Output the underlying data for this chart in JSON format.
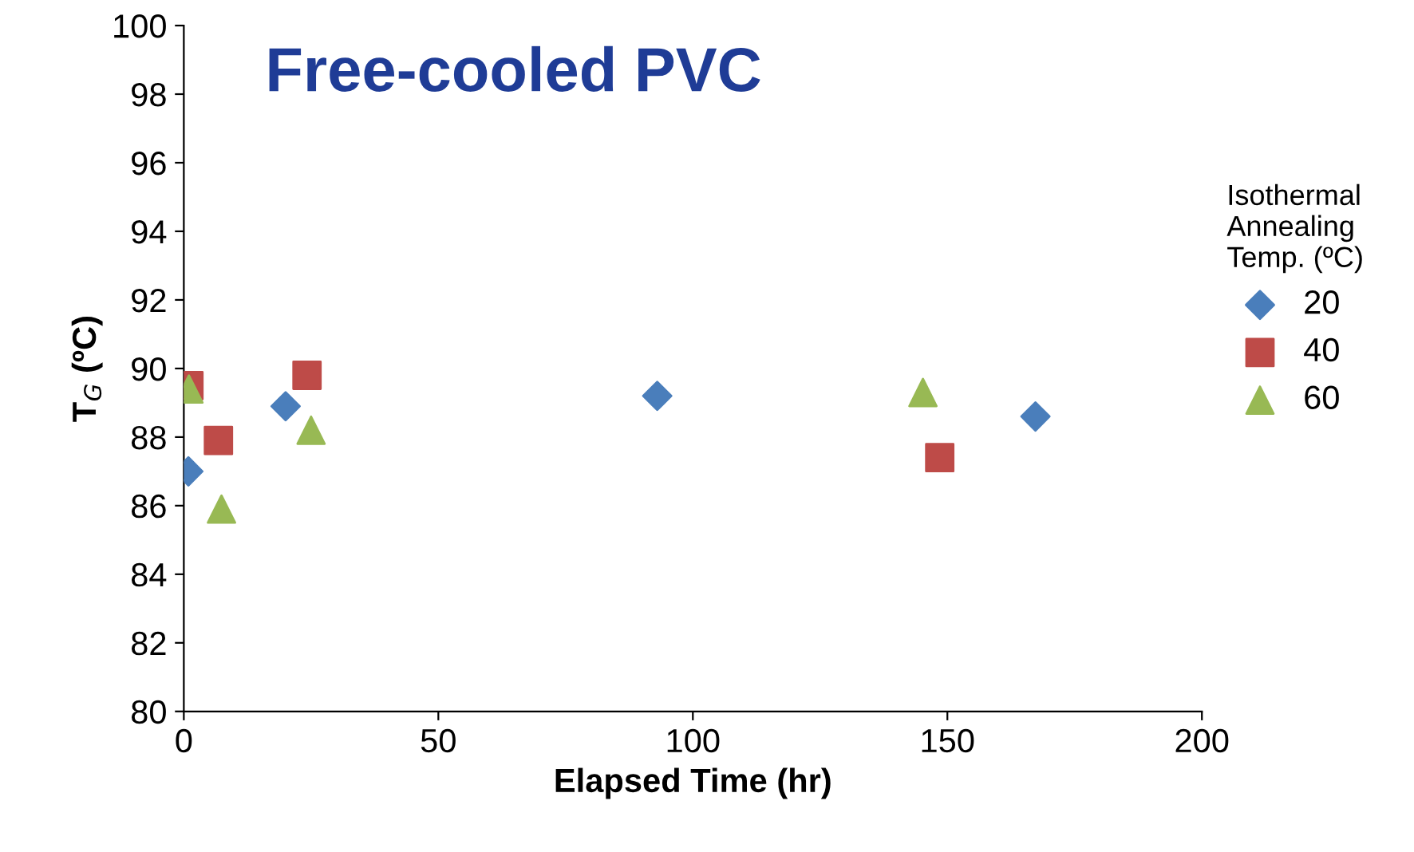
{
  "chart_data": {
    "type": "scatter",
    "title": "Free-cooled PVC",
    "xlabel": "Elapsed Time (hr)",
    "ylabel": "T$_{G}$ (ºC)",
    "legend_title": "Isothermal\nAnnealing\nTemp. (ºC)",
    "series": [
      {
        "name": "20",
        "color": "#4a7ebb",
        "marker": "diamond",
        "x": [
          0.9,
          20,
          93,
          167.3
        ],
        "values": [
          87.0,
          88.9,
          89.2,
          88.6
        ]
      },
      {
        "name": "40",
        "color": "#be4b48",
        "marker": "square",
        "x": [
          1,
          6.8,
          24.2,
          148.5
        ],
        "values": [
          89.5,
          87.9,
          89.8,
          87.4
        ]
      },
      {
        "name": "60",
        "color": "#98b954",
        "marker": "triangle",
        "x": [
          1,
          7.4,
          25,
          145.2
        ],
        "values": [
          89.4,
          85.9,
          88.2,
          89.3
        ]
      }
    ],
    "xlim": [
      0,
      200
    ],
    "xticks": [
      0,
      50,
      100,
      150,
      200
    ],
    "ylim": [
      80,
      100
    ],
    "yticks": [
      80,
      82,
      84,
      86,
      88,
      90,
      92,
      94,
      96,
      98,
      100
    ],
    "grid": false,
    "legend": "right"
  }
}
